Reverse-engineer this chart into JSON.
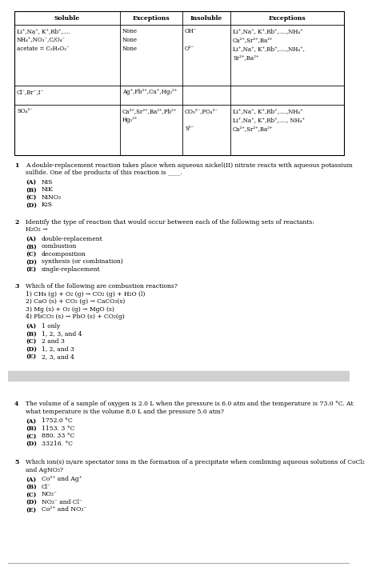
{
  "bg_color": "#ffffff",
  "text_color": "#000000",
  "table": {
    "headers": [
      "Soluble",
      "Exceptions",
      "Insoluble",
      "Exceptions"
    ]
  },
  "separator_color": "#d0d0d0",
  "questions": [
    {
      "number": "1",
      "text": "A double-replacement reaction takes place when aqueous nickel(II) nitrate reacts with aqueous potassium\nsulfide. One of the products of this reaction is ____.",
      "choices": [
        [
          "(A)",
          "NiS"
        ],
        [
          "(B)",
          "NiK"
        ],
        [
          "(C)",
          "NiNO₃"
        ],
        [
          "(D)",
          "K₂S"
        ]
      ]
    },
    {
      "number": "2",
      "text": "Identify the type of reaction that would occur between each of the following sets of reactants:\nH₂O₂ →",
      "choices": [
        [
          "(A)",
          "double-replacement"
        ],
        [
          "(B)",
          "combustion"
        ],
        [
          "(C)",
          "decomposition"
        ],
        [
          "(D)",
          "synthesis (or combination)"
        ],
        [
          "(E)",
          "single-replacement"
        ]
      ]
    },
    {
      "number": "3",
      "text": "Which of the following are combustion reactions?\n1) CH₄ (g) + O₂ (g) → CO₂ (g) + H₂O (l)\n2) CaO (s) + CO₂ (g) → CaCO₃(s)\n3) Mg (s) + O₂ (g) → MgO (s)\n4) PbCO₃ (s) → PbO (s) + CO₂(g)",
      "choices": [
        [
          "(A)",
          "1 only"
        ],
        [
          "(B)",
          "1, 2, 3, and 4"
        ],
        [
          "(C)",
          "2 and 3"
        ],
        [
          "(D)",
          "1, 2, and 3"
        ],
        [
          "(E)",
          "2, 3, and 4"
        ]
      ]
    },
    {
      "number": "4",
      "text": "The volume of a sample of oxygen is 2.0 L when the pressure is 6.0 atm and the temperature is 73.0 °C. At\nwhat temperature is the volume 8.0 L and the pressure 5.0 atm?",
      "choices": [
        [
          "(A)",
          "1752.0 °C"
        ],
        [
          "(B)",
          "1153. 3 °C"
        ],
        [
          "(C)",
          "880. 33 °C"
        ],
        [
          "(D)",
          "33216. °C"
        ]
      ]
    },
    {
      "number": "5",
      "text": "Which ion(s) is/are spectator ions in the formation of a precipitate when combining aqueous solutions of CoCl₂\nand AgNO₃?",
      "choices": [
        [
          "(A)",
          "Co²⁺ and Ag⁺"
        ],
        [
          "(B)",
          "Cl⁻"
        ],
        [
          "(C)",
          "NO₃⁻"
        ],
        [
          "(D)",
          "NO₃⁻ and Cl⁻"
        ],
        [
          "(E)",
          "Co²⁺ and NO₃⁻"
        ]
      ]
    }
  ]
}
